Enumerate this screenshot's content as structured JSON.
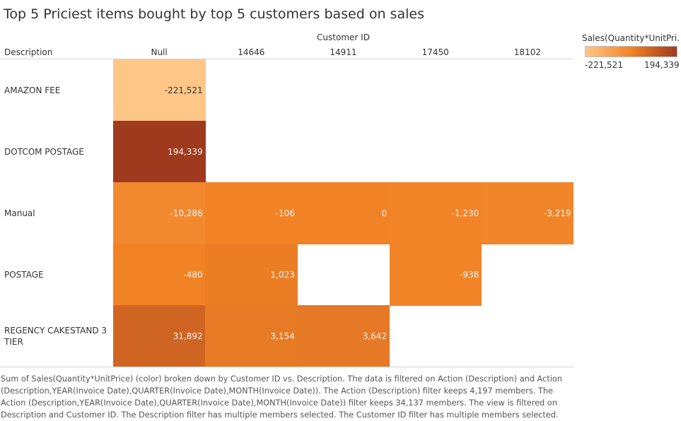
{
  "title": "Top 5 Priciest items bought by top 5 customers based on sales",
  "chart_data": {
    "type": "heatmap",
    "title": "Top 5 Priciest items bought by top 5 customers based on sales",
    "column_group_label": "Customer ID",
    "row_header_label": "Description",
    "columns": [
      "Null",
      "14646",
      "14911",
      "17450",
      "18102"
    ],
    "rows": [
      "AMAZON FEE",
      "DOTCOM POSTAGE",
      "Manual",
      "POSTAGE",
      "REGENCY CAKESTAND 3 TIER"
    ],
    "values": [
      [
        -221521,
        null,
        null,
        null,
        null
      ],
      [
        194339,
        null,
        null,
        null,
        null
      ],
      [
        -10286,
        -106,
        0,
        -1230,
        -3219
      ],
      [
        -480,
        1023,
        null,
        -938,
        null
      ],
      [
        31892,
        3154,
        3642,
        null,
        null
      ]
    ],
    "labels": [
      [
        "-221,521",
        null,
        null,
        null,
        null
      ],
      [
        "194,339",
        null,
        null,
        null,
        null
      ],
      [
        "-10,286",
        "-106",
        "0",
        "-1,230",
        "-3,219"
      ],
      [
        "-480",
        "1,023",
        null,
        "-938",
        null
      ],
      [
        "31,892",
        "3,154",
        "3,642",
        null,
        null
      ]
    ],
    "color_min": -221521,
    "color_max": 194339,
    "color_scale": [
      "#ffc688",
      "#f18326",
      "#a03a1f"
    ],
    "legend": {
      "title": "Sales(Quantity*UnitPri..",
      "min_label": "-221,521",
      "max_label": "194,339",
      "placement": "top-right"
    }
  },
  "caption": "Sum of Sales(Quantity*UnitPrice) (color) broken down by Customer ID vs. Description.  The data is filtered on Action (Description) and Action (Description,YEAR(Invoice Date),QUARTER(Invoice Date),MONTH(Invoice Date)). The Action (Description) filter keeps 4,197 members. The Action (Description,YEAR(Invoice Date),QUARTER(Invoice Date),MONTH(Invoice Date)) filter keeps 34,137 members. The view is filtered on Description and Customer ID. The Description filter has multiple members selected. The Customer ID filter has multiple members selected."
}
